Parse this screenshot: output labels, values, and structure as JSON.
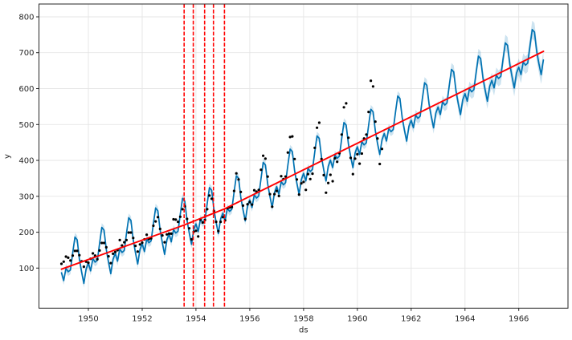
{
  "figure": {
    "kind": "prophet-forecast-plot",
    "background": "#ffffff"
  },
  "chart_data": {
    "type": "line",
    "title": "",
    "xlabel": "ds",
    "ylabel": "y",
    "legend": "none",
    "grid": true,
    "x_ticks": [
      1950,
      1952,
      1954,
      1956,
      1958,
      1960,
      1962,
      1964,
      1966
    ],
    "y_ticks": [
      100,
      200,
      300,
      400,
      500,
      600,
      700,
      800
    ],
    "xlim": [
      1948.163,
      1967.83
    ],
    "ylim": [
      -11.6,
      835.7
    ],
    "colors": {
      "observed": "#000000",
      "forecast_line": "#0072B2",
      "uncertainty_band": "#0072B2",
      "band_opacity": 0.2,
      "trend": "#ff0000",
      "changepoint": "#ff0000",
      "grid": "#e5e5e5",
      "axis": "#262626"
    },
    "observed": {
      "label": "observed monthly values",
      "start_year": 1949.0,
      "samples_per_year": 12,
      "marker_radius": 1.6,
      "values": [
        112,
        118,
        132,
        129,
        121,
        135,
        148,
        148,
        136,
        119,
        104,
        118,
        115,
        126,
        141,
        135,
        125,
        149,
        170,
        170,
        158,
        133,
        114,
        140,
        145,
        150,
        178,
        163,
        172,
        178,
        199,
        199,
        184,
        162,
        146,
        166,
        171,
        180,
        193,
        181,
        183,
        218,
        230,
        242,
        209,
        191,
        172,
        194,
        196,
        196,
        236,
        235,
        229,
        243,
        264,
        272,
        237,
        211,
        180,
        201,
        204,
        188,
        235,
        227,
        234,
        264,
        302,
        293,
        259,
        229,
        203,
        229,
        242,
        233,
        267,
        269,
        270,
        315,
        364,
        347,
        312,
        274,
        237,
        278,
        284,
        277,
        317,
        313,
        318,
        374,
        413,
        405,
        355,
        306,
        271,
        306,
        315,
        301,
        356,
        348,
        355,
        422,
        465,
        467,
        404,
        347,
        305,
        336,
        340,
        318,
        362,
        348,
        363,
        435,
        491,
        505,
        404,
        359,
        310,
        337,
        360,
        342,
        406,
        396,
        420,
        472,
        548,
        559,
        463,
        407,
        362,
        405,
        417,
        391,
        419,
        461,
        472,
        535,
        622,
        606,
        508,
        461,
        390,
        432
      ]
    },
    "forecast": {
      "label": "yhat with uncertainty interval",
      "start_year": 1949.0,
      "end_year": 1966.9167,
      "samples_per_year": 12,
      "seasonal_monthly_offsets": [
        -10,
        -34,
        -2,
        -14,
        -11,
        34,
        76,
        66,
        10,
        -28,
        -62,
        -24
      ],
      "uncertainty_halfwidth_history": 12,
      "uncertainty_halfwidth_end": 26,
      "forecast_start_year": 1960.917
    },
    "trend": {
      "label": "trend",
      "points": [
        [
          1949.0,
          97
        ],
        [
          1953.56,
          220
        ],
        [
          1955.06,
          265
        ],
        [
          1966.92,
          704
        ]
      ]
    },
    "changepoints": {
      "label": "changepoints",
      "x": [
        1953.56,
        1953.9,
        1954.32,
        1954.65,
        1955.06
      ]
    }
  }
}
